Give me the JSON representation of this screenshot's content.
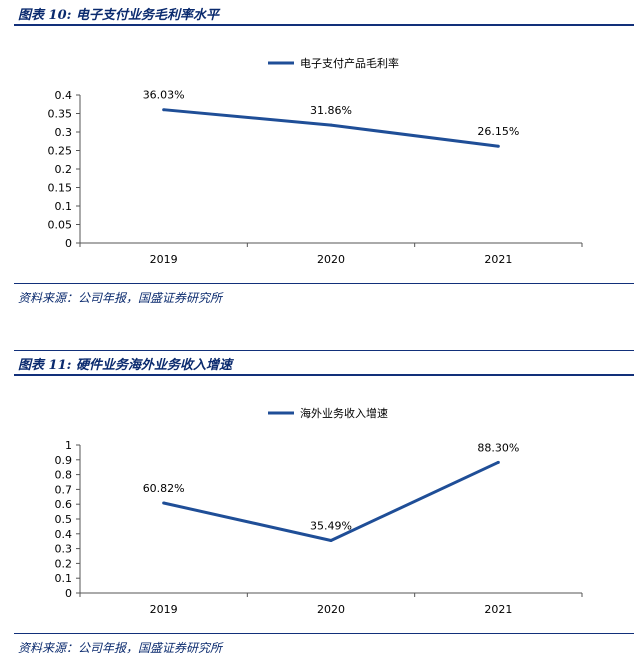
{
  "figures": [
    {
      "title": "图表 10:  电子支付业务毛利率水平",
      "source": "资料来源：公司年报，国盛证券研究所"
    },
    {
      "title": "图表 11:  硬件业务海外业务收入增速",
      "source": "资料来源：公司年报，国盛证券研究所"
    }
  ],
  "colors": {
    "line": "#1f4e97",
    "heading": "#0a2a6e",
    "rule": "#12307a"
  },
  "chart_data": [
    {
      "type": "line",
      "categories": [
        "2019",
        "2020",
        "2021"
      ],
      "series": [
        {
          "name": "电子支付产品毛利率",
          "values": [
            0.3603,
            0.3186,
            0.2615
          ]
        }
      ],
      "data_labels": [
        "36.03%",
        "31.86%",
        "26.15%"
      ],
      "ylim": [
        0,
        0.4
      ],
      "yticks": [
        0,
        0.05,
        0.1,
        0.15,
        0.2,
        0.25,
        0.3,
        0.35,
        0.4
      ],
      "ytick_labels": [
        "0",
        "0.05",
        "0.1",
        "0.15",
        "0.2",
        "0.25",
        "0.3",
        "0.35",
        "0.4"
      ],
      "legend_position": "top-center",
      "grid": false
    },
    {
      "type": "line",
      "categories": [
        "2019",
        "2020",
        "2021"
      ],
      "series": [
        {
          "name": "海外业务收入增速",
          "values": [
            0.6082,
            0.3549,
            0.883
          ]
        }
      ],
      "data_labels": [
        "60.82%",
        "35.49%",
        "88.30%"
      ],
      "ylim": [
        0,
        1
      ],
      "yticks": [
        0,
        0.1,
        0.2,
        0.3,
        0.4,
        0.5,
        0.6,
        0.7,
        0.8,
        0.9,
        1
      ],
      "ytick_labels": [
        "0",
        "0.1",
        "0.2",
        "0.3",
        "0.4",
        "0.5",
        "0.6",
        "0.7",
        "0.8",
        "0.9",
        "1"
      ],
      "legend_position": "top-center",
      "grid": false
    }
  ]
}
